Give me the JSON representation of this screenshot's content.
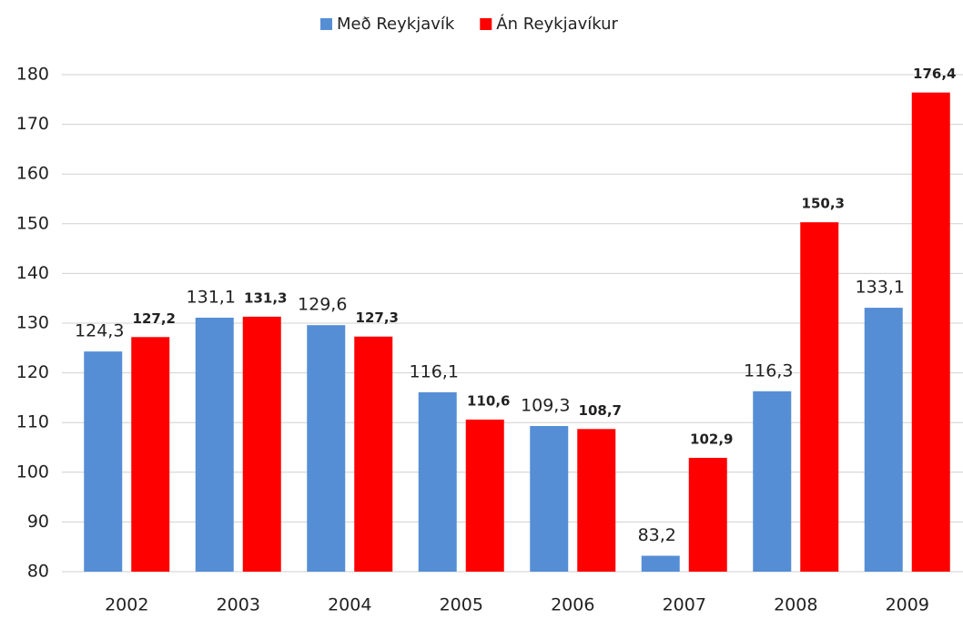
{
  "chart_data": {
    "type": "bar",
    "categories": [
      "2002",
      "2003",
      "2004",
      "2005",
      "2006",
      "2007",
      "2008",
      "2009"
    ],
    "series": [
      {
        "name": "Með Reykjavík",
        "color": "#558ed5",
        "values": [
          124.3,
          131.1,
          129.6,
          116.1,
          109.3,
          83.2,
          116.3,
          133.1
        ],
        "value_labels": [
          "124,3",
          "131,1",
          "129,6",
          "116,1",
          "109,3",
          "83,2",
          "116,3",
          "133,1"
        ]
      },
      {
        "name": "Án Reykjavíkur",
        "color": "#ff0000",
        "values": [
          127.2,
          131.3,
          127.3,
          110.6,
          108.7,
          102.9,
          150.3,
          176.4
        ],
        "value_labels": [
          "127,2",
          "131,3",
          "127,3",
          "110,6",
          "108,7",
          "102,9",
          "150,3",
          "176,4"
        ]
      }
    ],
    "ylim": [
      80,
      180
    ],
    "yticks": [
      80,
      90,
      100,
      110,
      120,
      130,
      140,
      150,
      160,
      170,
      180
    ],
    "grid": true,
    "legend": "top"
  }
}
